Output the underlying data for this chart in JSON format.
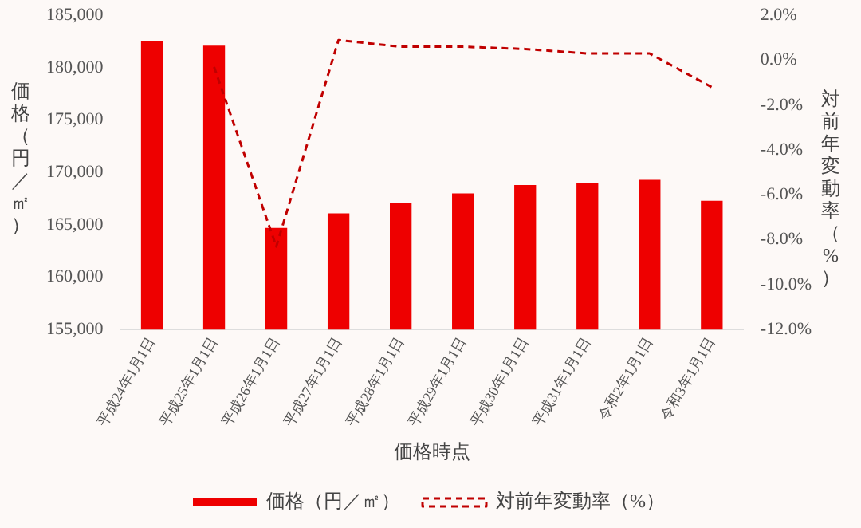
{
  "chart_data": {
    "type": "bar",
    "xlabel": "価格時点",
    "ylabel": "価格（円／㎡）",
    "y2label": "対前年変動率（%）",
    "categories": [
      "平成24年1月1日",
      "平成25年1月1日",
      "平成26年1月1日",
      "平成27年1月1日",
      "平成28年1月1日",
      "平成29年1月1日",
      "平成30年1月1日",
      "平成31年1月1日",
      "令和2年1月1日",
      "令和3年1月1日"
    ],
    "series": [
      {
        "name": "価格（円／㎡）",
        "color": "#ee0000",
        "values": [
          182500,
          182100,
          164700,
          166100,
          167100,
          168000,
          168800,
          169000,
          169300,
          167300
        ]
      },
      {
        "name": "対前年変動率（%）",
        "type": "line",
        "axis": "y2",
        "line_style": "dashed",
        "color": "#c00000",
        "values": [
          null,
          -0.3,
          -8.3,
          0.9,
          0.6,
          0.6,
          0.5,
          0.3,
          0.3,
          -1.2
        ]
      }
    ],
    "ylim": [
      155000,
      185000
    ],
    "yticks": [
      {
        "value": 155000,
        "label": "155,000"
      },
      {
        "value": 160000,
        "label": "160,000"
      },
      {
        "value": 165000,
        "label": "165,000"
      },
      {
        "value": 170000,
        "label": "170,000"
      },
      {
        "value": 175000,
        "label": "175,000"
      },
      {
        "value": 180000,
        "label": "180,000"
      },
      {
        "value": 185000,
        "label": "185,000"
      }
    ],
    "y2lim": [
      -12,
      2
    ],
    "y2ticks": [
      {
        "value": -12,
        "label": "-12.0%"
      },
      {
        "value": -10,
        "label": "-10.0%"
      },
      {
        "value": -8,
        "label": "-8.0%"
      },
      {
        "value": -6,
        "label": "-6.0%"
      },
      {
        "value": -4,
        "label": "-4.0%"
      },
      {
        "value": -2,
        "label": "-2.0%"
      },
      {
        "value": 0,
        "label": "0.0%"
      },
      {
        "value": 2,
        "label": "2.0%"
      }
    ],
    "grid": false,
    "legend": "bottom"
  }
}
